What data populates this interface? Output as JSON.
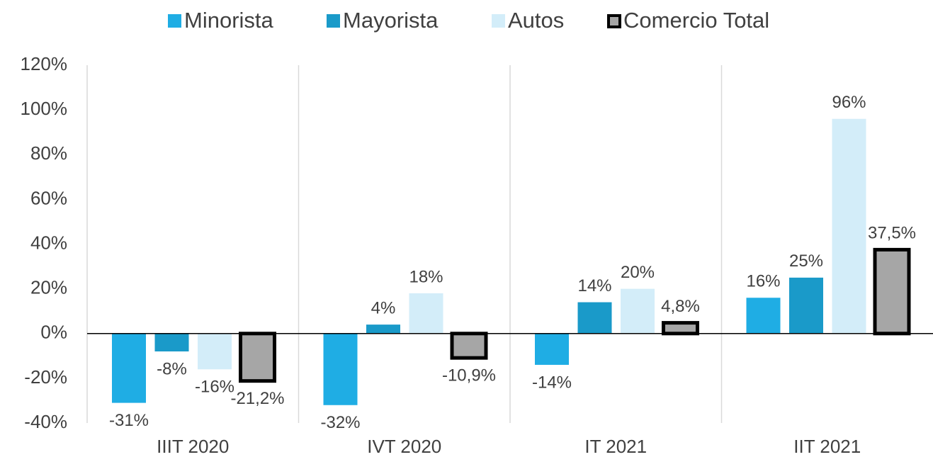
{
  "chart_data": {
    "type": "bar",
    "categories": [
      "IIIT 2020",
      "IVT 2020",
      "IT 2021",
      "IIT 2021"
    ],
    "series": [
      {
        "name": "Minorista",
        "color": "#1fade4",
        "values": [
          -31,
          -32,
          -14,
          16
        ],
        "value_labels": [
          "-31%",
          "-32%",
          "-14%",
          "16%"
        ]
      },
      {
        "name": "Mayorista",
        "color": "#1a9ac9",
        "values": [
          -8,
          4,
          14,
          25
        ],
        "value_labels": [
          "-8%",
          "4%",
          "14%",
          "25%"
        ]
      },
      {
        "name": "Autos",
        "color": "#d3edf9",
        "values": [
          -16,
          18,
          20,
          96
        ],
        "value_labels": [
          "-16%",
          "18%",
          "20%",
          "96%"
        ]
      },
      {
        "name": "Comercio Total",
        "color": "#a6a6a6",
        "edgecolor": "#000000",
        "values": [
          -21.2,
          -10.9,
          4.8,
          37.5
        ],
        "value_labels": [
          "-21,2%",
          "-10,9%",
          "4,8%",
          "37,5%"
        ]
      }
    ],
    "ylim": [
      -40,
      120
    ],
    "yticks": [
      {
        "value": -40,
        "label": "-40%"
      },
      {
        "value": -20,
        "label": "-20%"
      },
      {
        "value": 0,
        "label": "0%"
      },
      {
        "value": 20,
        "label": "20%"
      },
      {
        "value": 40,
        "label": "40%"
      },
      {
        "value": 60,
        "label": "60%"
      },
      {
        "value": 80,
        "label": "80%"
      },
      {
        "value": 100,
        "label": "100%"
      },
      {
        "value": 120,
        "label": "120%"
      }
    ],
    "legend": "top"
  }
}
